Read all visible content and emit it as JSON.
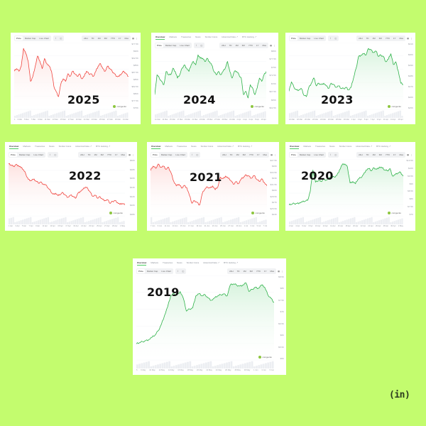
{
  "colors": {
    "background": "#c3fc6e",
    "panel": "#ffffff",
    "down": "#f0453f",
    "down_fill": "#fde1df",
    "up": "#2fb24a",
    "up_fill": "#d7f3dd",
    "volume": "#eceef2"
  },
  "common": {
    "tabs": [
      "Overview",
      "Markets",
      "Treasuries",
      "News",
      "Similar Coins",
      "Historical Data ↗",
      "BTC Halving ↗"
    ],
    "chart_types": [
      "Price",
      "Market Cap",
      "Live Chart"
    ],
    "chart_modes": [
      "⌇",
      "◫"
    ],
    "ranges": [
      "24H",
      "7D",
      "1M",
      "3M",
      "YTD",
      "1Y",
      "Max"
    ],
    "menu_icon": "▦",
    "more_icon": "⋮",
    "watermark": "coingecko"
  },
  "logo": {
    "text": "(in)"
  },
  "chart_data": [
    {
      "type": "area",
      "title": "2025",
      "trend": "down",
      "x_labels": [
        "1",
        "3 Mar",
        "5 Mar",
        "7 Mar",
        "9 Mar",
        "11 Mar",
        "13 Mar",
        "15 Mar",
        "17 Mar",
        "19 Mar",
        "21 Mar",
        "23 Mar",
        "25 Mar",
        "27 Mar",
        "29 Mar",
        "31 Mar"
      ],
      "y_labels": [
        "$77.5K",
        "$90K",
        "$92.5K",
        "$85K",
        "$87.5K",
        "$85K",
        "$82.5K",
        "$80K",
        "$77.5K",
        "$75K"
      ],
      "values": [
        84,
        85,
        84,
        86,
        93,
        91,
        88,
        80,
        82,
        86,
        90,
        88,
        85,
        89,
        87,
        86,
        84,
        78,
        76,
        74,
        79,
        81,
        80,
        83,
        82,
        84,
        83,
        82,
        83,
        81,
        82,
        84,
        83,
        83,
        82,
        84,
        86,
        87,
        85,
        84,
        86,
        85,
        84,
        83,
        82,
        82,
        83,
        84,
        83,
        82
      ],
      "has_tabs": false
    },
    {
      "type": "area",
      "title": "2024",
      "trend": "up",
      "x_labels": [
        "11 Mar",
        "13 Mar",
        "15 Mar",
        "17 Mar",
        "19 Mar",
        "21 Mar",
        "23 Mar",
        "25 Mar",
        "27 Mar",
        "29 Mar",
        "31 Mar",
        "2 Apr",
        "4 Apr",
        "6 Apr",
        "8 Apr",
        "10 Apr"
      ],
      "y_labels": [
        "$80K",
        "$77.5K",
        "$75K",
        "$72.5K",
        "$70K",
        "$67.5K",
        "$65K",
        "$62.5K"
      ],
      "values": [
        63,
        69,
        68,
        67,
        66,
        70,
        69,
        69,
        71,
        70,
        68,
        69,
        71,
        72,
        71,
        70,
        72,
        73,
        72,
        75,
        74,
        74,
        73,
        74,
        73,
        72,
        70,
        69,
        70,
        69,
        70,
        71,
        73,
        70,
        68,
        70,
        70,
        69,
        68,
        63,
        64,
        62,
        66,
        65,
        63,
        65,
        68,
        67,
        69,
        70
      ],
      "has_tabs": true
    },
    {
      "type": "area",
      "title": "2023",
      "trend": "up",
      "x_labels": [
        "16 Mar",
        "18 Mar",
        "20 Mar",
        "22 Mar",
        "24 Mar",
        "26 Mar",
        "28 Mar",
        "30 Mar",
        "1 Apr",
        "3 Apr",
        "5 Apr",
        "7 Apr",
        "9 Apr",
        "11 Apr",
        "13 Apr",
        "15 Apr"
      ],
      "y_labels": [
        "$31K",
        "$30K",
        "$29K",
        "$28K",
        "$27K",
        "$26K",
        "$25K"
      ],
      "values": [
        26.8,
        27.5,
        27.1,
        26.9,
        26.9,
        27.0,
        26.5,
        26.4,
        27.1,
        27.4,
        27.8,
        27.2,
        27.4,
        27.3,
        27.4,
        27.2,
        27.0,
        27.4,
        27.3,
        27.1,
        27.2,
        27.0,
        27.0,
        27.1,
        26.9,
        27.1,
        27.8,
        28.5,
        29.4,
        29.5,
        29.6,
        29.5,
        30.0,
        29.9,
        29.7,
        29.8,
        29.4,
        29.5,
        29.4,
        29.0,
        29.2,
        29.6,
        28.8,
        29.0,
        28.3,
        27.4,
        27.3
      ],
      "has_tabs": false
    },
    {
      "type": "area",
      "title": "2022",
      "trend": "down",
      "x_labels": [
        "1 Apr",
        "3 Apr",
        "5 Apr",
        "7 Apr",
        "9 Apr",
        "11 Apr",
        "13 Apr",
        "15 Apr",
        "17 Apr",
        "19 Apr",
        "21 Apr",
        "23 Apr",
        "25 Apr",
        "27 Apr",
        "29 Apr",
        "1 May"
      ],
      "y_labels": [
        "$50K",
        "$48K",
        "$46K",
        "$44K",
        "$42K",
        "$40K",
        "$38K"
      ],
      "values": [
        46.5,
        46.3,
        46.0,
        46.4,
        46.2,
        45.8,
        45.4,
        44.5,
        43.5,
        43.3,
        43.5,
        43.2,
        42.8,
        43.0,
        42.6,
        42.4,
        41.8,
        41.2,
        40.6,
        40.8,
        40.3,
        40.6,
        40.9,
        40.4,
        40.0,
        40.4,
        40.2,
        39.8,
        40.8,
        41.2,
        41.5,
        42.0,
        41.7,
        41.0,
        40.2,
        40.4,
        39.8,
        40.1,
        39.6,
        39.4,
        39.5,
        38.8,
        39.2,
        39.4,
        39.0,
        38.6,
        38.8,
        38.5
      ],
      "has_tabs": true
    },
    {
      "type": "area",
      "title": "2021",
      "trend": "down",
      "x_labels": [
        "7 Jun",
        "9 Jun",
        "11 Jun",
        "13 Jun",
        "15 Jun",
        "17 Jun",
        "19 Jun",
        "21 Jun",
        "23 Jun",
        "25 Jun",
        "27 Jun",
        "29 Jun",
        "1 Jul",
        "3 Jul",
        "5 Jul",
        "7 Jul"
      ],
      "y_labels": [
        "$37.5K",
        "$36K",
        "$34.5K",
        "$33K",
        "$31.5K",
        "$30K",
        "$28.5K",
        "$27K",
        "$25.5K",
        "$24K"
      ],
      "values": [
        35.0,
        35.8,
        35.4,
        36.2,
        35.6,
        35.8,
        35.2,
        35.6,
        34.5,
        33.0,
        32.2,
        32.5,
        31.8,
        32.3,
        31.9,
        30.5,
        29.0,
        29.5,
        29.2,
        28.7,
        30.8,
        31.6,
        32.0,
        31.8,
        32.2,
        31.5,
        32.0,
        33.8,
        33.5,
        34.0,
        33.6,
        33.2,
        32.5,
        33.0,
        32.6,
        33.4,
        33.8,
        34.2,
        34.0,
        33.6,
        34.1,
        33.4,
        33.0,
        33.5,
        32.8,
        32.2
      ],
      "has_tabs": true
    },
    {
      "type": "area",
      "title": "2020",
      "trend": "up",
      "x_labels": [
        "2 Apr",
        "4 Apr",
        "6 Apr",
        "8 Apr",
        "10 Apr",
        "12 Apr",
        "14 Apr",
        "16 Apr",
        "18 Apr",
        "20 Apr",
        "22 Apr",
        "24 Apr",
        "26 Apr",
        "28 Apr",
        "30 Apr",
        "2 May"
      ],
      "y_labels": [
        "$10.5K",
        "$10K",
        "$9.5K",
        "$9K",
        "$8.5K",
        "$8K",
        "$7.5K",
        "$7K"
      ],
      "values": [
        7.3,
        7.35,
        7.4,
        7.4,
        7.45,
        7.5,
        7.55,
        7.6,
        8.2,
        9.6,
        8.8,
        8.9,
        8.85,
        9.0,
        8.95,
        9.05,
        9.1,
        9.15,
        9.25,
        9.6,
        9.95,
        10.0,
        9.8,
        8.75,
        8.85,
        8.7,
        9.0,
        9.1,
        9.3,
        9.6,
        9.7,
        9.55,
        9.75,
        9.65,
        9.8,
        9.75,
        9.6,
        9.55,
        9.7,
        9.2,
        9.3,
        9.4,
        9.45,
        9.2
      ],
      "has_tabs": true
    },
    {
      "type": "area",
      "title": "2019",
      "trend": "up",
      "x_labels": [
        "5",
        "6 May",
        "10 May",
        "12 May",
        "14 May",
        "16 May",
        "18 May",
        "20 May",
        "22 May",
        "24 May",
        "26 May",
        "28 May",
        "30 May",
        "1 Jun",
        "3 Jun",
        "5 Jun"
      ],
      "y_labels": [
        "$8.5K",
        "$8K",
        "$7.5K",
        "$7K",
        "$6.5K",
        "$6K",
        "$5.5K",
        "$5K"
      ],
      "values": [
        5.6,
        5.65,
        5.7,
        5.75,
        5.8,
        5.9,
        6.0,
        6.2,
        6.5,
        6.9,
        7.3,
        7.8,
        7.9,
        7.85,
        8.0,
        7.7,
        7.1,
        7.2,
        7.25,
        7.8,
        7.9,
        7.8,
        7.85,
        7.7,
        7.6,
        7.7,
        7.8,
        7.85,
        7.9,
        7.8,
        8.3,
        8.35,
        8.3,
        8.25,
        8.3,
        8.4,
        8.0,
        8.1,
        8.2,
        8.15,
        8.3,
        8.2,
        7.85,
        7.7,
        7.5
      ],
      "has_tabs": true
    }
  ]
}
